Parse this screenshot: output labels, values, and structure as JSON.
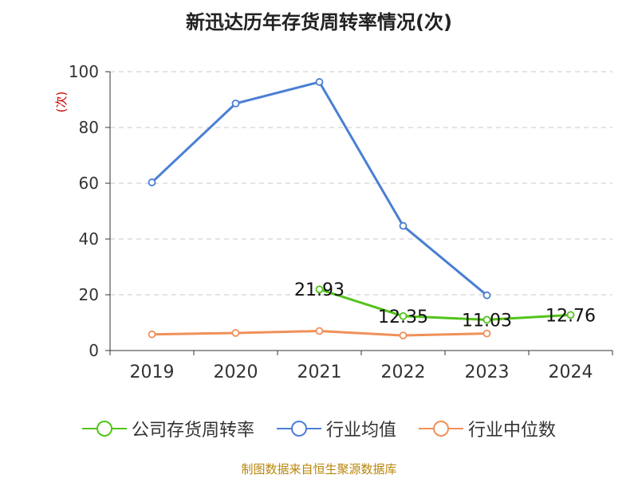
{
  "title": "新迅达历年存货周转率情况(次)",
  "footer": "制图数据来自恒生聚源数据库",
  "chart_data": {
    "type": "line",
    "title": "新迅达历年存货周转率情况(次)",
    "ylabel": "(次)",
    "xlabel": "",
    "categories": [
      "2019",
      "2020",
      "2021",
      "2022",
      "2023",
      "2024"
    ],
    "ylim": [
      0,
      100
    ],
    "yticks": [
      0,
      20,
      40,
      60,
      80,
      100
    ],
    "grid": "horizontal-dashed",
    "legend_position": "bottom",
    "series": [
      {
        "name": "公司存货周转率",
        "color": "#52c41a",
        "values": [
          null,
          null,
          21.93,
          12.35,
          11.03,
          12.76
        ],
        "labels": [
          "",
          "",
          "21.93",
          "12.35",
          "11.03",
          "12.76"
        ]
      },
      {
        "name": "行业均值",
        "color": "#4a7fd4",
        "values": [
          60.3,
          88.6,
          96.3,
          44.7,
          19.8,
          null
        ]
      },
      {
        "name": "行业中位数",
        "color": "#f0905a",
        "values": [
          5.8,
          6.3,
          7.0,
          5.4,
          6.1,
          null
        ]
      }
    ]
  }
}
